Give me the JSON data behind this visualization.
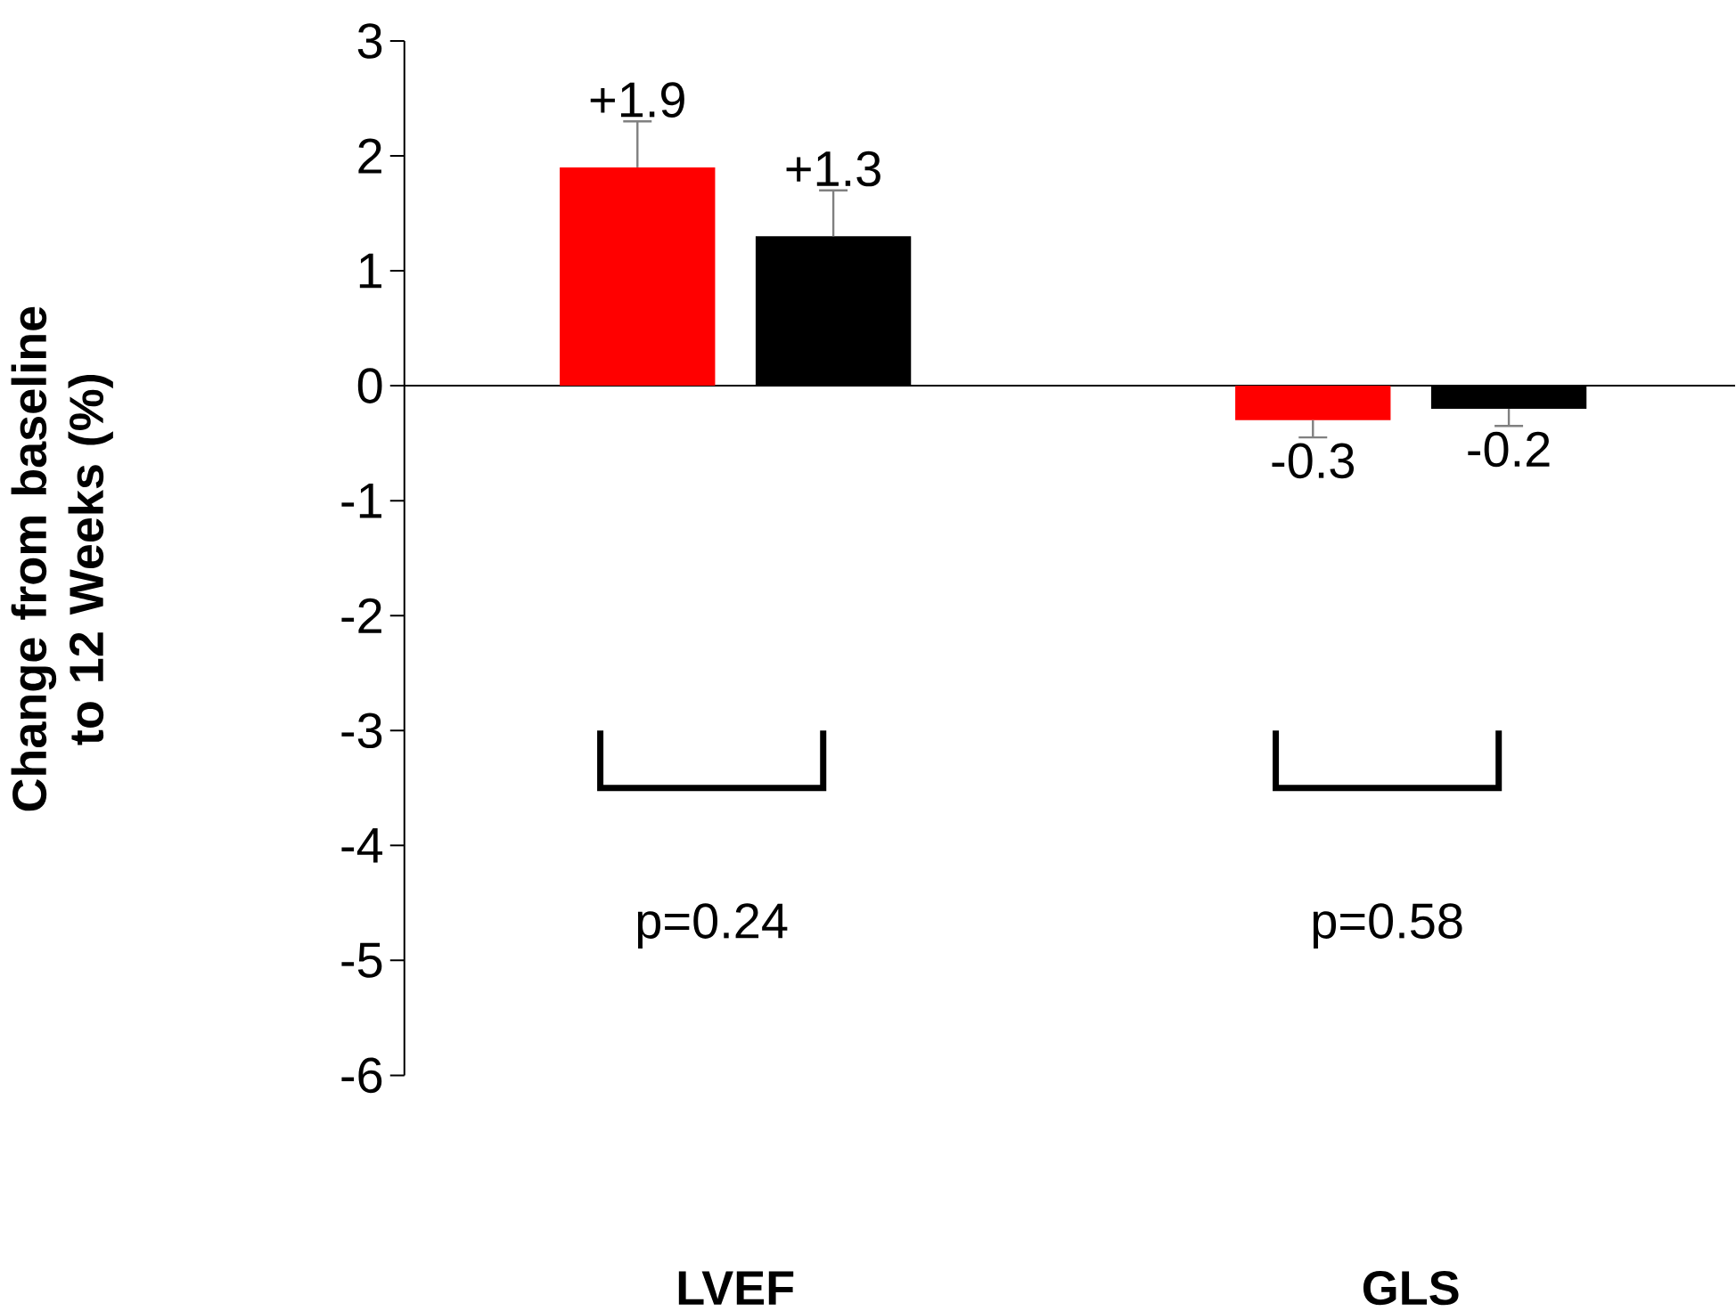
{
  "chart_data": {
    "type": "bar",
    "ylabel": "Change from baseline to 12 Weeks (%)",
    "categories": [
      "LVEF",
      "GLS"
    ],
    "ylim": [
      -6,
      3
    ],
    "yticks": [
      -6,
      -5,
      -4,
      -3,
      -2,
      -1,
      0,
      1,
      2,
      3
    ],
    "series": [
      {
        "color": "#ff0000",
        "values": [
          1.9,
          -0.3
        ],
        "errors": [
          [
            1.9,
            2.3
          ],
          [
            -0.45,
            -0.3
          ]
        ],
        "value_labels": [
          "+1.9",
          "-0.3"
        ]
      },
      {
        "color": "#000000",
        "values": [
          1.3,
          -0.2
        ],
        "errors": [
          [
            1.3,
            1.7
          ],
          [
            -0.35,
            -0.2
          ]
        ],
        "value_labels": [
          "+1.3",
          "-0.2"
        ]
      }
    ],
    "annotations": [
      "p=0.24",
      "p=0.58"
    ]
  }
}
